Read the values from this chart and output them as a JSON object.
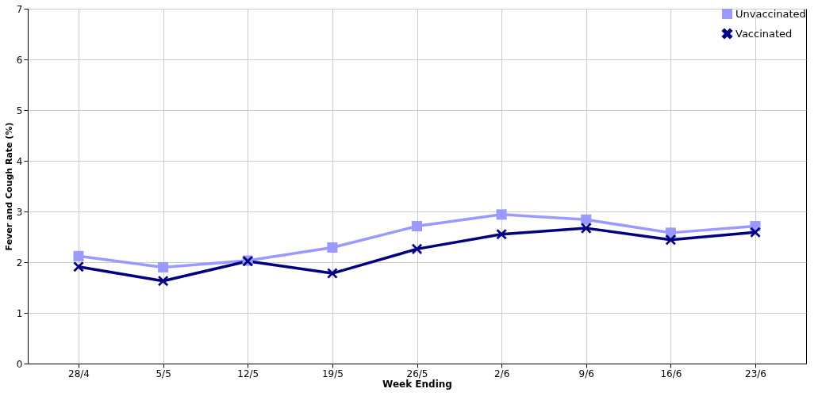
{
  "chart_data": {
    "type": "line",
    "xlabel": "Week Ending",
    "ylabel": "Fever and Cough Rate (%)",
    "categories": [
      "28/4",
      "5/5",
      "12/5",
      "19/5",
      "26/5",
      "2/6",
      "9/6",
      "16/6",
      "23/6"
    ],
    "series": [
      {
        "name": "Unvaccinated",
        "color": "#9999ff",
        "marker": "square",
        "values": [
          2.12,
          1.9,
          2.03,
          2.29,
          2.71,
          2.94,
          2.84,
          2.58,
          2.71
        ]
      },
      {
        "name": "Vaccinated",
        "color": "#000080",
        "marker": "cross",
        "values": [
          1.91,
          1.63,
          2.02,
          1.78,
          2.26,
          2.55,
          2.67,
          2.44,
          2.59
        ]
      }
    ],
    "ylim": [
      0,
      7
    ],
    "yticks": [
      0,
      1,
      2,
      3,
      4,
      5,
      6,
      7
    ],
    "grid": true,
    "legend": "top right",
    "line_style": "solid"
  }
}
